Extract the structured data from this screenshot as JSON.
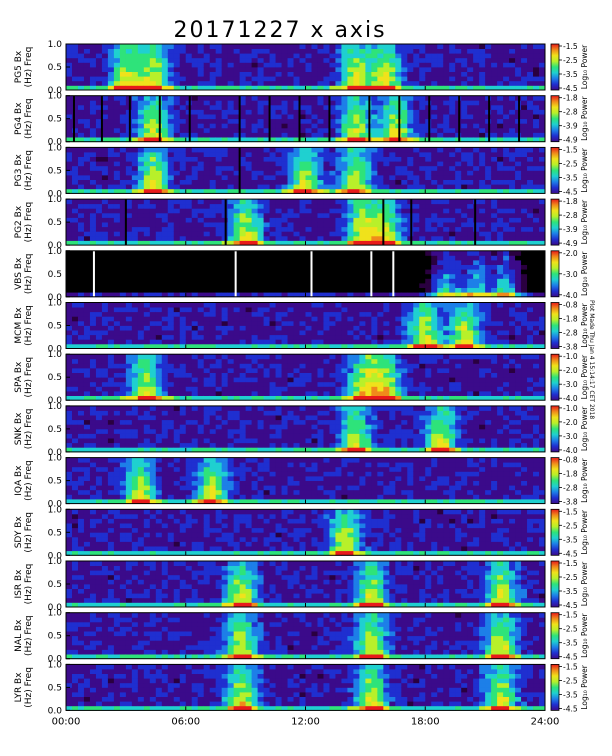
{
  "title": "20171227 x axis",
  "side_note": "Plot Made Thu Jan 4 15:14:17 CET 2018",
  "chart_data": {
    "type": "heatmap",
    "plot_kind": "stacked spectrograms",
    "x_axis": {
      "unit": "UT hours",
      "range": [
        0,
        24
      ],
      "tick_values": [
        0,
        6,
        12,
        18,
        24
      ],
      "tick_labels": [
        "00:00",
        "06:00",
        "12:00",
        "18:00",
        "24:00"
      ]
    },
    "y_axis": {
      "range": [
        0,
        1.0
      ],
      "tick_labels": [
        "0.0",
        "0.5",
        "1.0"
      ]
    },
    "ylabel_line2": "(Hz) Freq",
    "colorbar_label": "Log₁₀ Power",
    "panels": [
      {
        "station": "PG5",
        "ylabel": "PG5 Bx",
        "cbar_ticks": [
          "-1.5",
          "-2.5",
          "-3.5",
          "-4.5"
        ],
        "data_gaps_hours": [],
        "activity_peaks_hours": [
          3.0,
          4.4,
          14.5,
          16.0
        ]
      },
      {
        "station": "PG4",
        "ylabel": "PG4 Bx",
        "cbar_ticks": [
          "-1.8",
          "-2.8",
          "-3.9",
          "-4.9"
        ],
        "data_gaps_hours": [
          0.4,
          1.8,
          3.2,
          4.7,
          6.2,
          8.7,
          10.2,
          11.7,
          13.2,
          15.2,
          16.7,
          18.2,
          19.7,
          21.2,
          22.7
        ],
        "activity_peaks_hours": [
          4.4,
          14.5,
          16.5
        ]
      },
      {
        "station": "PG3",
        "ylabel": "PG3 Bx",
        "cbar_ticks": [
          "-1.5",
          "-2.5",
          "-3.5",
          "-4.5"
        ],
        "data_gaps_hours": [
          8.7
        ],
        "activity_peaks_hours": [
          4.4,
          12.0,
          14.5
        ]
      },
      {
        "station": "PG2",
        "ylabel": "PG2 Bx",
        "cbar_ticks": [
          "-1.8",
          "-2.8",
          "-3.9",
          "-4.9"
        ],
        "data_gaps_hours": [
          3.0,
          8.0,
          15.9,
          17.3,
          20.5
        ],
        "activity_peaks_hours": [
          9.0,
          14.8,
          16.0
        ]
      },
      {
        "station": "VBS",
        "ylabel": "VBS Bx",
        "cbar_ticks": [
          "-2.0",
          "-3.0",
          "-4.0"
        ],
        "data_gaps_hours": [
          1.4,
          8.5,
          12.3,
          15.3,
          16.4
        ],
        "activity_peaks_hours": [
          19.0,
          20.5,
          22.0
        ]
      },
      {
        "station": "MCM",
        "ylabel": "MCM Bx",
        "cbar_ticks": [
          "-0.8",
          "-1.8",
          "-2.8",
          "-3.8"
        ],
        "data_gaps_hours": [],
        "activity_peaks_hours": [
          18.0,
          20.0
        ]
      },
      {
        "station": "SPA",
        "ylabel": "SPA Bx",
        "cbar_ticks": [
          "-1.0",
          "-2.0",
          "-3.0",
          "-4.0"
        ],
        "data_gaps_hours": [],
        "activity_peaks_hours": [
          4.0,
          14.9,
          16.0
        ]
      },
      {
        "station": "SNK",
        "ylabel": "SNK Bx",
        "cbar_ticks": [
          "-1.0",
          "-2.0",
          "-3.0",
          "-4.0"
        ],
        "data_gaps_hours": [],
        "activity_peaks_hours": [
          14.5,
          18.8
        ]
      },
      {
        "station": "IQA",
        "ylabel": "IQA Bx",
        "cbar_ticks": [
          "-0.8",
          "-1.8",
          "-2.8",
          "-3.8"
        ],
        "data_gaps_hours": [],
        "activity_peaks_hours": [
          3.7,
          7.3
        ]
      },
      {
        "station": "SDY",
        "ylabel": "SDY Bx",
        "cbar_ticks": [
          "-1.5",
          "-2.5",
          "-3.5",
          "-4.5"
        ],
        "data_gaps_hours": [],
        "activity_peaks_hours": [
          14.0
        ]
      },
      {
        "station": "ISR",
        "ylabel": "ISR Bx",
        "cbar_ticks": [
          "-1.5",
          "-2.5",
          "-3.5",
          "-4.5"
        ],
        "data_gaps_hours": [],
        "activity_peaks_hours": [
          8.8,
          15.3,
          21.8
        ]
      },
      {
        "station": "NAL",
        "ylabel": "NAL Bx",
        "cbar_ticks": [
          "-1.5",
          "-2.5",
          "-3.5",
          "-4.5"
        ],
        "data_gaps_hours": [],
        "activity_peaks_hours": [
          8.8,
          15.3,
          21.8
        ]
      },
      {
        "station": "LYR",
        "ylabel": "LYR Bx",
        "cbar_ticks": [
          "-1.5",
          "-2.5",
          "-3.5",
          "-4.5"
        ],
        "data_gaps_hours": [],
        "activity_peaks_hours": [
          8.8,
          15.3,
          21.8
        ]
      }
    ],
    "colormap": [
      "#000000",
      "#2a0040",
      "#3b0a8a",
      "#1f2fd0",
      "#1d7fe8",
      "#1fd0d0",
      "#2ee37a",
      "#b8f02a",
      "#f0e21b",
      "#f08a1b",
      "#e81a1a"
    ],
    "grid": false
  }
}
